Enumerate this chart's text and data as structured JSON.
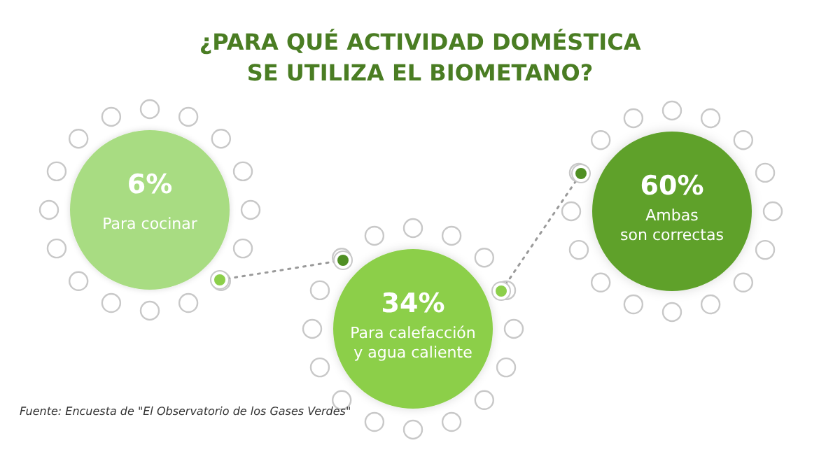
{
  "chart_data": {
    "type": "other",
    "title": "¿PARA QUÉ ACTIVIDAD DOMÉSTICA\nSE UTILIZA EL BIOMETANO?",
    "categories": [
      "Para cocinar",
      "Para calefacción\ny agua caliente",
      "Ambas\nson correctas"
    ],
    "values": [
      6,
      34,
      60
    ],
    "value_labels": [
      "6%",
      "34%",
      "60%"
    ],
    "colors": [
      "#a8dc82",
      "#8ccf4a",
      "#5ea12a"
    ],
    "annotations": [
      "Fuente: Encuesta de \"El Observatorio de los Gases Verdes\""
    ]
  }
}
